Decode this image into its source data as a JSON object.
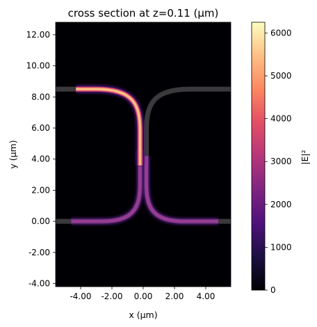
{
  "chart_data": {
    "type": "heatmap",
    "title": "cross section at z=0.11 (µm)",
    "xlabel": "x (µm)",
    "ylabel": "y (µm)",
    "xlim": [
      -5.6,
      5.6
    ],
    "ylim": [
      -4.2,
      12.8
    ],
    "xticks": [
      -4.0,
      -2.0,
      0.0,
      2.0,
      4.0
    ],
    "xtick_labels": [
      "-4.00",
      "-2.00",
      "0.00",
      "2.00",
      "4.00"
    ],
    "yticks": [
      -4.0,
      -2.0,
      0.0,
      2.0,
      4.0,
      6.0,
      8.0,
      10.0,
      12.0
    ],
    "ytick_labels": [
      "-4.00",
      "-2.00",
      "0.00",
      "2.00",
      "4.00",
      "6.00",
      "8.00",
      "10.00",
      "12.00"
    ],
    "colorbar": {
      "label": "|E|²",
      "colormap": "magma",
      "range": [
        0,
        6250
      ],
      "ticks": [
        0,
        1000,
        2000,
        3000,
        4000,
        5000,
        6000
      ],
      "tick_labels": [
        "0",
        "1000",
        "2000",
        "3000",
        "4000",
        "5000",
        "6000"
      ]
    },
    "waveguides": [
      {
        "name": "upper-left arm",
        "from_x": -5.6,
        "y_top": 8.5,
        "bend_to_x": -0.2,
        "y_bottom": 3.5,
        "shown_field": true
      },
      {
        "name": "upper-right arm",
        "from_x": 5.6,
        "y_top": 8.5,
        "bend_to_x": 0.2,
        "y_bottom": 3.5,
        "shown_field": false
      },
      {
        "name": "lower-left arm",
        "from_x": -5.6,
        "y": 0.0,
        "bend_to_x": -0.2,
        "y_top": 3.5,
        "shown_field": true
      },
      {
        "name": "lower-right arm",
        "from_x": 5.6,
        "y": 0.0,
        "bend_to_x": 0.2,
        "y_top": 3.5,
        "shown_field": true
      }
    ],
    "field_peak_region": "upper-left arm, approx 6000 |E|²",
    "field_lower_arms": "approx 2000 |E|²"
  }
}
